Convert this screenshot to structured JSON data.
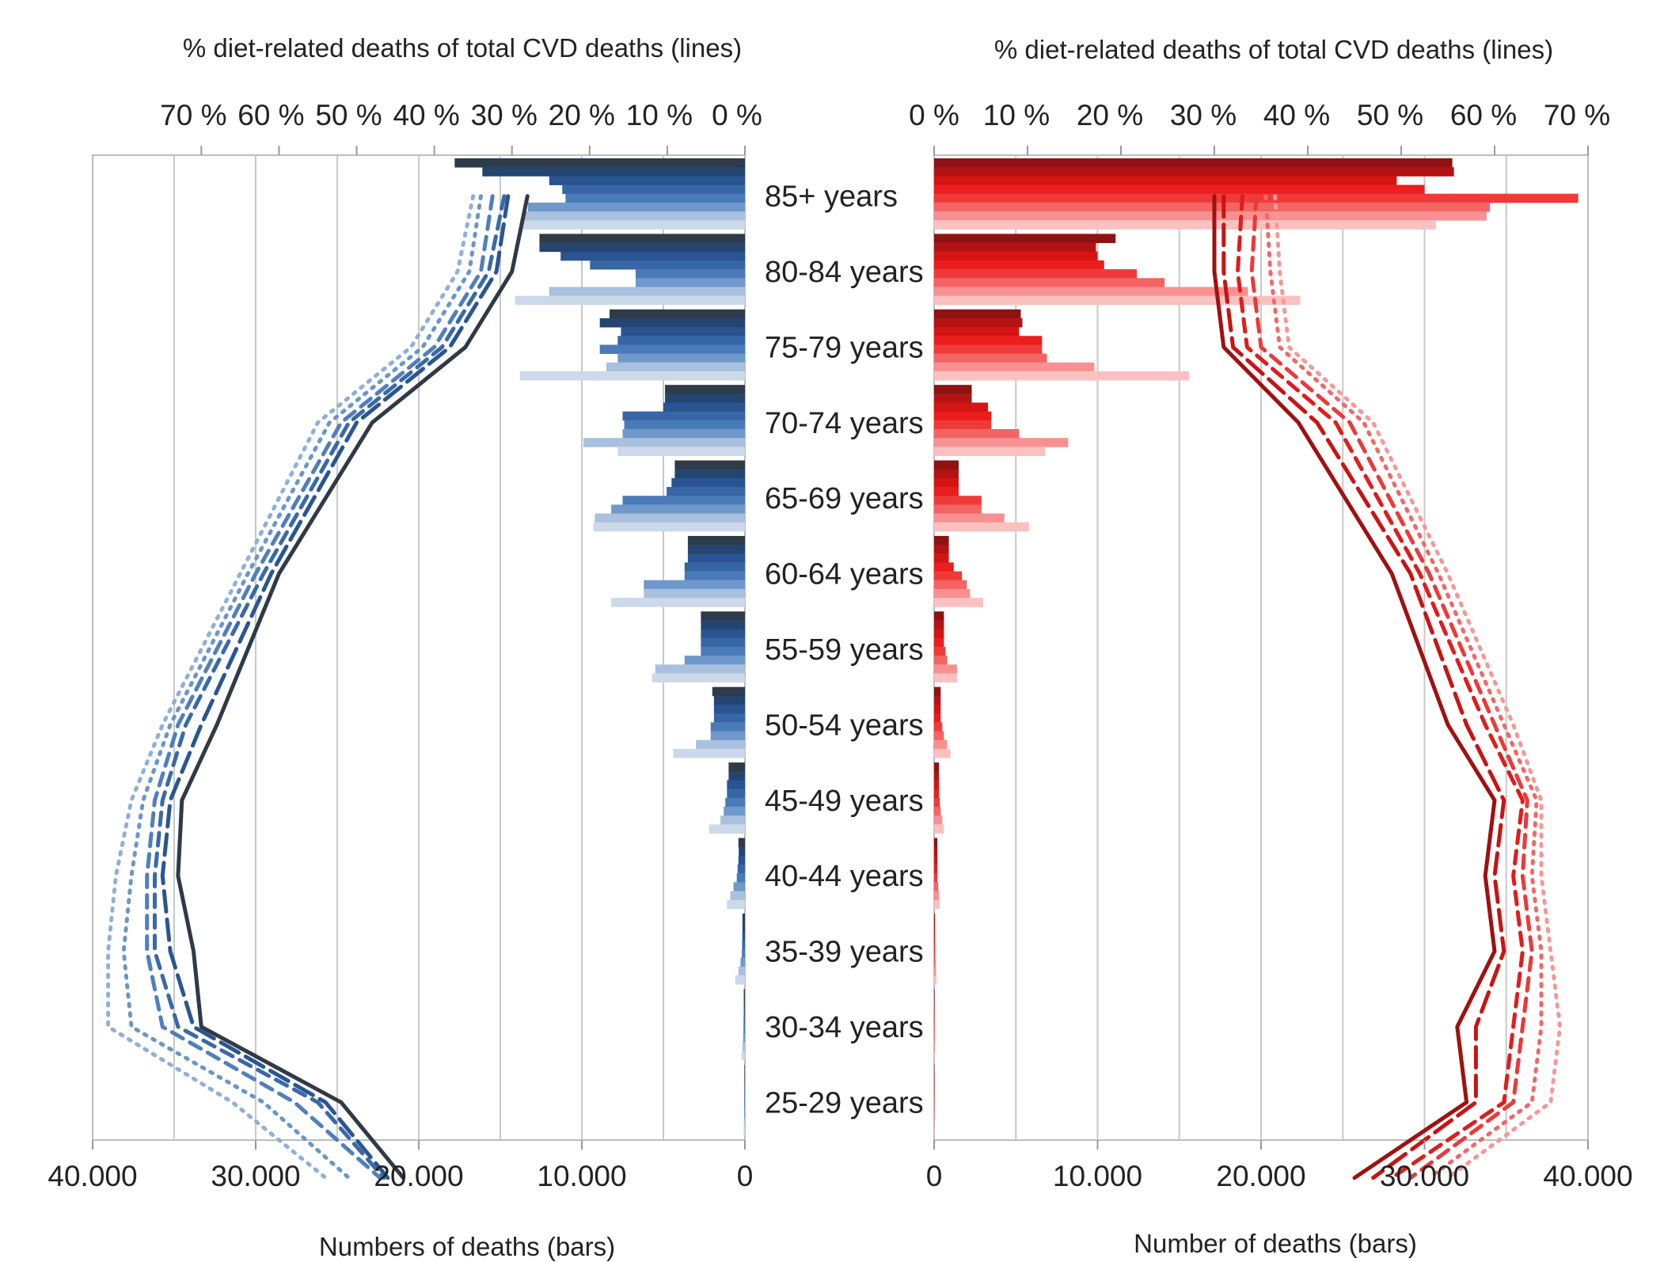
{
  "age_groups": [
    "85+ years",
    "80-84 years",
    "75-79 years",
    "70-74 years",
    "65-69 years",
    "60-64 years",
    "55-59 years",
    "50-54 years",
    "45-49 years",
    "40-44 years",
    "35-39 years",
    "30-34 years",
    "25-29 years"
  ],
  "colors": {
    "blue_bars": [
      "#2f3b48",
      "#23456f",
      "#2a5391",
      "#3766a6",
      "#4a7bb8",
      "#6f98cb",
      "#a9c0de",
      "#ccd9eb"
    ],
    "red_bars": [
      "#8e1212",
      "#b31313",
      "#d51414",
      "#ec1d1d",
      "#f03a3a",
      "#f36464",
      "#f79191",
      "#fbc0c0"
    ],
    "blue_lines": [
      "#2f3a46",
      "#2a5593",
      "#3a69a7",
      "#4f7fbc",
      "#6b96c8",
      "#8fb0d8"
    ],
    "red_lines": [
      "#a01010",
      "#c81414",
      "#e01c1c",
      "#ea3a3a",
      "#f06868",
      "#f59898"
    ],
    "grid": "#c8c8c8"
  },
  "chart_data": [
    {
      "type": "bar",
      "panel": "left",
      "xlabel": "Numbers of deaths (bars)",
      "x2label": "% diet-related deaths of total CVD deaths (lines)",
      "xlim": [
        40000,
        0
      ],
      "x2lim": [
        70,
        0
      ],
      "xticks": [
        "40.000",
        "30.000",
        "20.000",
        "10.000",
        "0"
      ],
      "x2ticks": [
        "70 %",
        "60 %",
        "50 %",
        "40 %",
        "30 %",
        "20 %",
        "10 %",
        "0 %"
      ],
      "categories": [
        "85+ years",
        "80-84 years",
        "75-79 years",
        "70-74 years",
        "65-69 years",
        "60-64 years",
        "55-59 years",
        "50-54 years",
        "45-49 years",
        "40-44 years",
        "35-39 years",
        "30-34 years",
        "25-29 years"
      ],
      "bar_series": [
        [
          17800,
          12600,
          8300,
          4900,
          4300,
          3500,
          2700,
          2000,
          1000,
          400,
          150,
          70,
          30
        ],
        [
          16100,
          12600,
          8900,
          4900,
          4300,
          3500,
          2700,
          1900,
          1000,
          380,
          150,
          70,
          30
        ],
        [
          12000,
          11300,
          7600,
          5000,
          4500,
          3500,
          2700,
          1900,
          1100,
          400,
          160,
          70,
          30
        ],
        [
          11200,
          9500,
          7800,
          7500,
          4800,
          3700,
          2700,
          1900,
          1100,
          450,
          170,
          80,
          35
        ],
        [
          11000,
          6700,
          8900,
          7400,
          7500,
          3700,
          2700,
          2100,
          1200,
          500,
          190,
          90,
          40
        ],
        [
          13300,
          6700,
          7800,
          7500,
          8200,
          6200,
          3700,
          2100,
          1300,
          700,
          270,
          110,
          50
        ],
        [
          13500,
          12000,
          8500,
          9900,
          9200,
          6200,
          5500,
          3000,
          1500,
          900,
          400,
          150,
          60
        ],
        [
          13800,
          14100,
          13800,
          7800,
          9300,
          8200,
          5700,
          4400,
          2200,
          1100,
          600,
          200,
          80
        ]
      ],
      "line_series": [
        {
          "style": "solid",
          "values": [
            28,
            30,
            36,
            48,
            60,
            68,
            72.5,
            73,
            71,
            70,
            52,
            44
          ]
        },
        {
          "style": "long-dash",
          "values": [
            30.5,
            32,
            38,
            50,
            61,
            70,
            74,
            75,
            74,
            71,
            54,
            46
          ]
        },
        {
          "style": "dash",
          "values": [
            31,
            33,
            39,
            51,
            62,
            72,
            75,
            76,
            76,
            73,
            55,
            46.5
          ]
        },
        {
          "style": "dash",
          "values": [
            32.5,
            34,
            40,
            52,
            63,
            73,
            76,
            77,
            77,
            75,
            58,
            47
          ]
        },
        {
          "style": "dotted",
          "values": [
            34,
            35.5,
            41.5,
            53.5,
            64,
            74,
            77.5,
            79,
            80,
            79,
            62,
            51
          ]
        },
        {
          "style": "dotted",
          "values": [
            35,
            37,
            43,
            55,
            65,
            75,
            79,
            81,
            82,
            82,
            66,
            54
          ]
        }
      ],
      "line_x": [
        0.5,
        1.5,
        2.5,
        3.5,
        5.5,
        7.5,
        8.5,
        9.5,
        10.5,
        11.5,
        12.5,
        13.5
      ]
    },
    {
      "type": "bar",
      "panel": "right",
      "xlabel": "Number of deaths (bars)",
      "x2label": "% diet-related deaths of total CVD deaths (lines)",
      "xlim": [
        0,
        40000
      ],
      "x2lim": [
        0,
        70
      ],
      "xticks": [
        "0",
        "10.000",
        "20.000",
        "30.000",
        "40.000"
      ],
      "x2ticks": [
        "0 %",
        "10 %",
        "20 %",
        "30 %",
        "40 %",
        "50 %",
        "60 %",
        "70 %"
      ],
      "categories": [
        "85+ years",
        "80-84 years",
        "75-79 years",
        "70-74 years",
        "65-69 years",
        "60-64 years",
        "55-59 years",
        "50-54 years",
        "45-49 years",
        "40-44 years",
        "35-39 years",
        "30-34 years",
        "25-29 years"
      ],
      "bar_series": [
        [
          31700,
          11100,
          5300,
          2300,
          1500,
          900,
          600,
          400,
          300,
          200,
          60,
          30,
          15
        ],
        [
          31800,
          9900,
          5400,
          2300,
          1500,
          900,
          600,
          400,
          300,
          200,
          60,
          30,
          15
        ],
        [
          28300,
          10000,
          5200,
          3300,
          1500,
          900,
          600,
          400,
          300,
          200,
          60,
          30,
          15
        ],
        [
          30000,
          10400,
          6600,
          3500,
          1500,
          1200,
          600,
          400,
          300,
          200,
          60,
          30,
          15
        ],
        [
          39400,
          12400,
          6600,
          3500,
          2900,
          1700,
          700,
          500,
          350,
          200,
          70,
          35,
          15
        ],
        [
          34000,
          14100,
          6900,
          5200,
          2900,
          2000,
          800,
          600,
          400,
          250,
          90,
          40,
          20
        ],
        [
          33800,
          19200,
          9800,
          8200,
          4300,
          2200,
          1400,
          800,
          500,
          300,
          120,
          50,
          20
        ],
        [
          30700,
          22400,
          15600,
          6800,
          5800,
          3000,
          1400,
          1000,
          600,
          350,
          150,
          60,
          25
        ]
      ],
      "line_series": [
        {
          "style": "solid",
          "values": [
            30,
            30,
            31,
            39,
            49,
            55,
            60,
            59,
            60,
            56,
            57,
            45
          ]
        },
        {
          "style": "long-dash",
          "values": [
            31,
            31,
            32,
            41,
            51,
            57,
            61,
            60,
            61,
            58,
            58,
            47
          ]
        },
        {
          "style": "dash",
          "values": [
            33,
            32.5,
            33.5,
            43,
            52,
            59,
            63,
            62,
            63,
            62,
            61,
            49
          ]
        },
        {
          "style": "dash",
          "values": [
            34.5,
            34,
            35,
            44.5,
            53,
            60,
            63.5,
            63,
            64,
            63,
            62,
            51
          ]
        },
        {
          "style": "dotted",
          "values": [
            35.5,
            36,
            37,
            46,
            54,
            61,
            64.5,
            64,
            65,
            65,
            64,
            53
          ]
        },
        {
          "style": "dotted",
          "values": [
            36.5,
            37,
            38,
            47,
            55,
            62,
            65,
            65,
            66,
            67,
            66,
            55
          ]
        }
      ],
      "line_x": [
        0.5,
        1.5,
        2.5,
        3.5,
        5.5,
        7.5,
        8.5,
        9.5,
        10.5,
        11.5,
        12.5,
        13.5
      ]
    }
  ]
}
